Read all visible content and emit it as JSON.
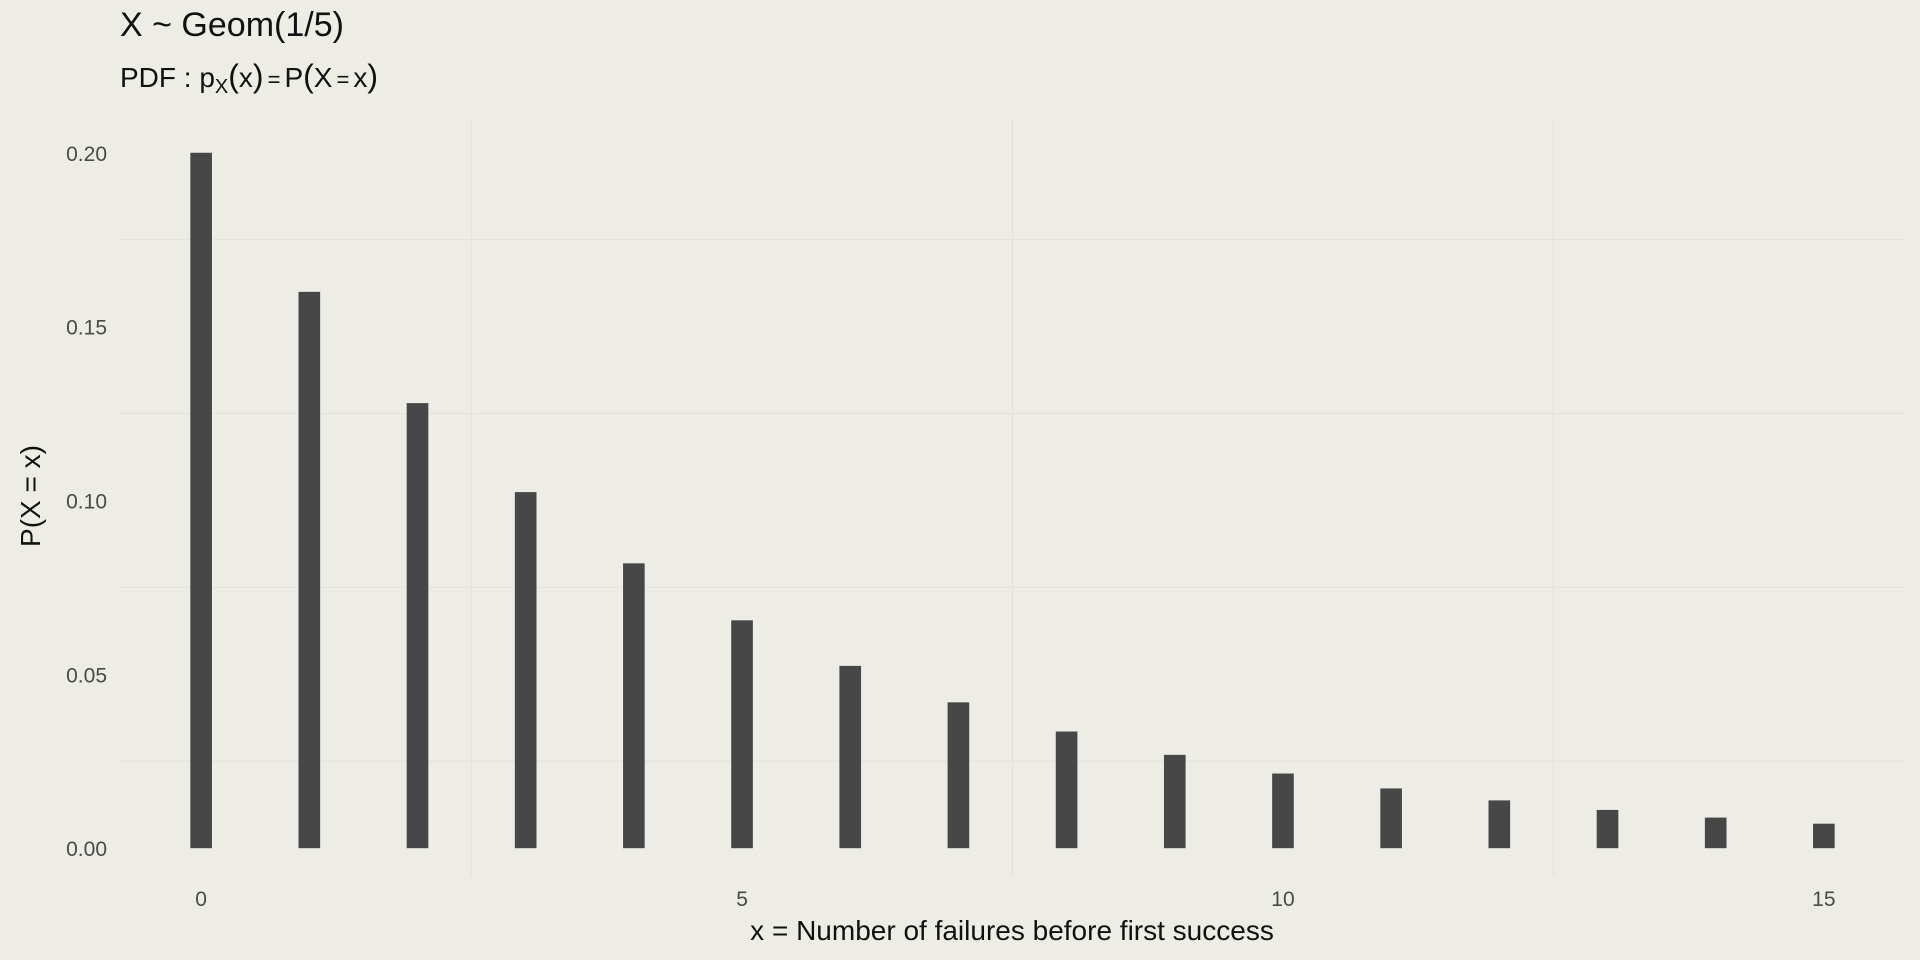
{
  "title": "X ~ Geom(1/5)",
  "subtitle": {
    "prefix": "PDF : ",
    "p": "p",
    "sub": "X",
    "x1": "x",
    "eq": "=",
    "P": "P",
    "X": "X",
    "eq2": "=",
    "x2": "x"
  },
  "colors": {
    "background": "#edede6",
    "bar": "#474747",
    "grid": "#e2e2da"
  },
  "chart_data": {
    "type": "bar",
    "xlabel": "x = Number of failures before first success",
    "ylabel": "P(X = x)",
    "x": [
      0,
      1,
      2,
      3,
      4,
      5,
      6,
      7,
      8,
      9,
      10,
      11,
      12,
      13,
      14,
      15
    ],
    "values": [
      0.2,
      0.16,
      0.128,
      0.1024,
      0.08192,
      0.065536,
      0.0524288,
      0.04194304,
      0.033554432,
      0.0268435456,
      0.02147483648,
      0.017179869184,
      0.0137438953472,
      0.01099511627776,
      0.008796093022208,
      0.0070368744177664
    ],
    "xlim": [
      -0.75,
      15.75
    ],
    "ylim": [
      -0.008,
      0.21
    ],
    "x_ticks": [
      0,
      5,
      10,
      15
    ],
    "x_tick_labels": [
      "0",
      "5",
      "10",
      "15"
    ],
    "y_ticks": [
      0,
      0.05,
      0.1,
      0.15,
      0.2
    ],
    "y_tick_labels": [
      "0.00",
      "0.05",
      "0.10",
      "0.15",
      "0.20"
    ],
    "grid": true,
    "legend": "none"
  }
}
